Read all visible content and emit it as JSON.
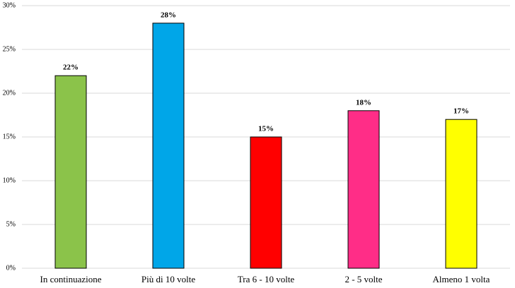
{
  "chart_data": {
    "type": "bar",
    "categories": [
      "In continuazione",
      "Più di 10 volte",
      "Tra 6 - 10 volte",
      "2 - 5 volte",
      "Almeno 1 volta"
    ],
    "values": [
      22,
      28,
      15,
      18,
      17
    ],
    "value_labels": [
      "22%",
      "28%",
      "15%",
      "18%",
      "17%"
    ],
    "colors": [
      "#8bc34a",
      "#00a6e8",
      "#ff0000",
      "#ff2d87",
      "#ffff00"
    ],
    "ylim": [
      0,
      30
    ],
    "yticks": [
      {
        "value": 0,
        "label": "0%"
      },
      {
        "value": 5,
        "label": "5%"
      },
      {
        "value": 10,
        "label": "10%"
      },
      {
        "value": 15,
        "label": "15%"
      },
      {
        "value": 20,
        "label": "20%"
      },
      {
        "value": 25,
        "label": "25%"
      },
      {
        "value": 30,
        "label": "30%"
      }
    ],
    "grid": true
  }
}
